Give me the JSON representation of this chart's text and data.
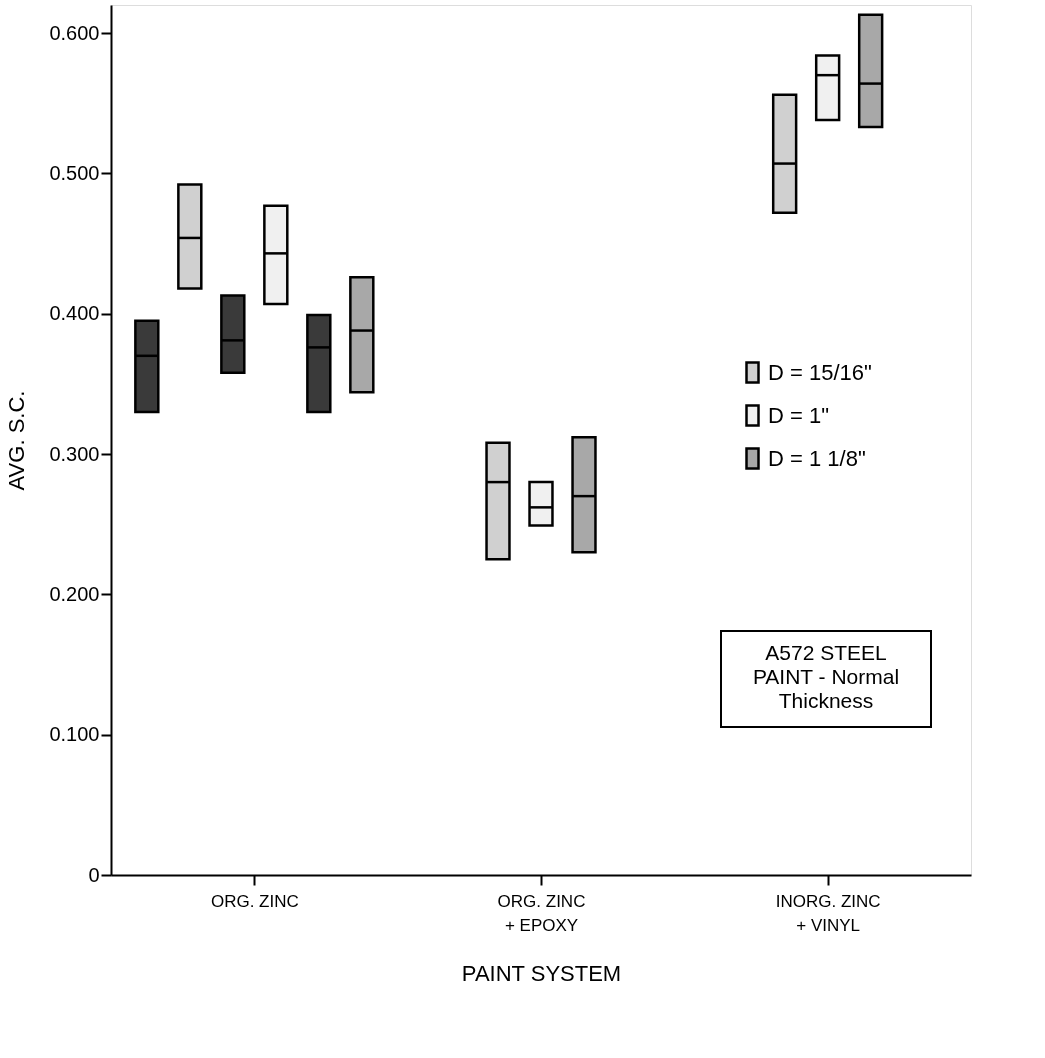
{
  "chart_data": {
    "type": "box",
    "xlabel": "PAINT SYSTEM",
    "ylabel": "AVG. S.C.",
    "categories": [
      "ORG. ZINC",
      "ORG. ZINC\n+ EPOXY",
      "INORG. ZINC\n+ VINYL"
    ],
    "ylim": [
      0,
      0.62
    ],
    "yticks": [
      0,
      {
        "value": 0.1,
        "label": "0.100"
      },
      {
        "value": 0.2,
        "label": "0.200"
      },
      {
        "value": 0.3,
        "label": "0.300"
      },
      {
        "value": 0.4,
        "label": "0.400"
      },
      {
        "value": 0.5,
        "label": "0.500"
      },
      {
        "value": 0.6,
        "label": "0.600"
      }
    ],
    "series": [
      {
        "color": "#3a3a3a",
        "boxes": [
          {
            "low": 0.33,
            "q1": 0.33,
            "median": 0.37,
            "q3": 0.395,
            "high": 0.395
          },
          null,
          null
        ]
      },
      {
        "name": "D = 15/16\"",
        "color": "#d0d0d0",
        "boxes": [
          {
            "low": 0.418,
            "q1": 0.418,
            "median": 0.454,
            "q3": 0.492,
            "high": 0.492
          },
          {
            "low": 0.225,
            "q1": 0.225,
            "median": 0.28,
            "q3": 0.308,
            "high": 0.308
          },
          {
            "low": 0.472,
            "q1": 0.472,
            "median": 0.507,
            "q3": 0.556,
            "high": 0.556
          }
        ]
      },
      {
        "color": "#3a3a3a",
        "boxes": [
          {
            "low": 0.358,
            "q1": 0.358,
            "median": 0.381,
            "q3": 0.413,
            "high": 0.413
          },
          null,
          null
        ]
      },
      {
        "name": "D = 1\"",
        "color": "#f0f0f0",
        "boxes": [
          {
            "low": 0.407,
            "q1": 0.407,
            "median": 0.443,
            "q3": 0.477,
            "high": 0.477
          },
          {
            "low": 0.249,
            "q1": 0.249,
            "median": 0.262,
            "q3": 0.28,
            "high": 0.28
          },
          {
            "low": 0.538,
            "q1": 0.538,
            "median": 0.57,
            "q3": 0.584,
            "high": 0.584
          }
        ]
      },
      {
        "color": "#3a3a3a",
        "boxes": [
          {
            "low": 0.33,
            "q1": 0.33,
            "median": 0.376,
            "q3": 0.399,
            "high": 0.399
          },
          null,
          null
        ]
      },
      {
        "name": "D = 1 1/8\"",
        "color": "#a8a8a8",
        "boxes": [
          {
            "low": 0.344,
            "q1": 0.344,
            "median": 0.388,
            "q3": 0.426,
            "high": 0.426
          },
          {
            "low": 0.23,
            "q1": 0.23,
            "median": 0.27,
            "q3": 0.312,
            "high": 0.312
          },
          {
            "low": 0.533,
            "q1": 0.533,
            "median": 0.564,
            "q3": 0.613,
            "high": 0.613
          }
        ]
      }
    ],
    "legend": "right",
    "grid": false,
    "annotations": [
      "A572 STEEL\nPAINT - Normal\nThickness"
    ]
  }
}
